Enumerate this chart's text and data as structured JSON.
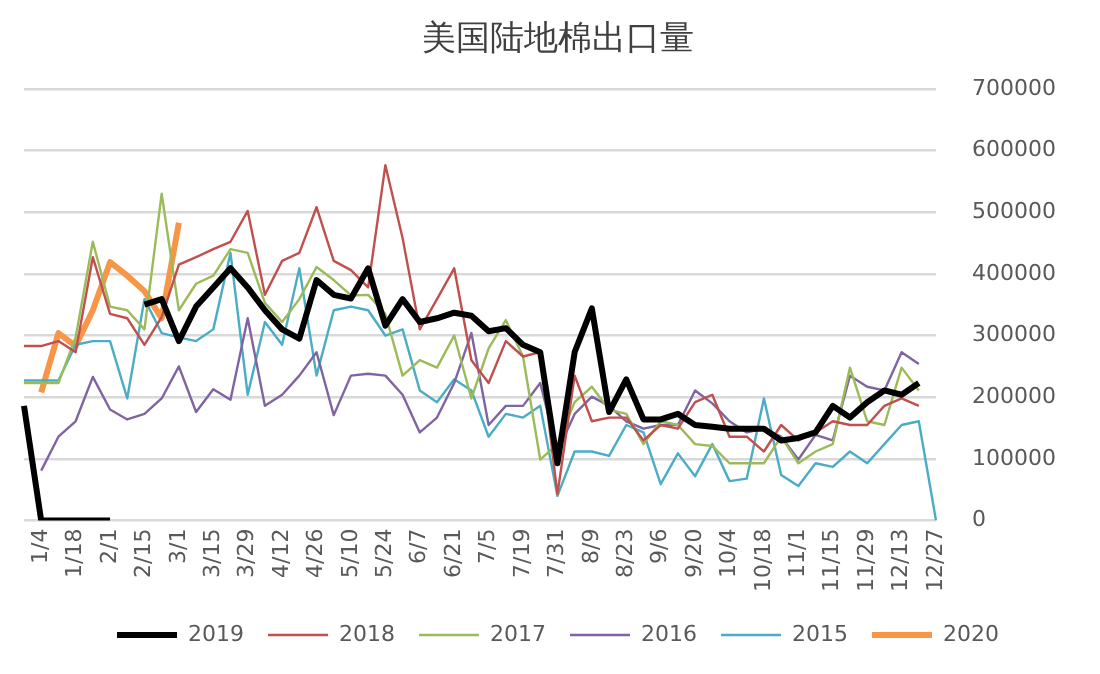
{
  "chart_data": {
    "type": "line",
    "title": "美国陆地棉出口量",
    "categories": [
      null,
      "1/4",
      null,
      "1/18",
      null,
      "2/1",
      null,
      "2/15",
      null,
      "3/1",
      null,
      "3/15",
      null,
      "3/29",
      null,
      "4/12",
      null,
      "4/26",
      null,
      "5/10",
      null,
      "5/24",
      null,
      "6/7",
      null,
      "6/21",
      null,
      "7/5",
      null,
      "7/19",
      null,
      "7/31",
      null,
      "8/9",
      null,
      "8/23",
      null,
      "9/6",
      null,
      "9/20",
      null,
      "10/4",
      null,
      "10/18",
      null,
      "11/1",
      null,
      "11/15",
      null,
      "11/29",
      null,
      "12/13",
      null,
      "12/27"
    ],
    "series": [
      {
        "name": "2019",
        "color": "#000000",
        "values": [
          186000,
          0,
          0,
          0,
          0,
          0,
          null,
          350000,
          359000,
          291000,
          347000,
          378000,
          409000,
          378000,
          341000,
          310000,
          295000,
          390000,
          366000,
          360000,
          409000,
          316000,
          359000,
          322000,
          328000,
          337000,
          332000,
          307000,
          312000,
          285000,
          273000,
          93000,
          273000,
          344000,
          176000,
          229000,
          164000,
          164000,
          173000,
          155000,
          152000,
          149000,
          149000,
          149000,
          130000,
          134000,
          143000,
          186000,
          167000,
          192000,
          211000,
          204000,
          223000,
          null
        ]
      },
      {
        "name": "2018",
        "color": "#c0504d",
        "values": [
          283000,
          283000,
          291000,
          273000,
          427000,
          335000,
          328000,
          285000,
          330000,
          415000,
          427000,
          440000,
          452000,
          502000,
          366000,
          421000,
          434000,
          508000,
          421000,
          406000,
          378000,
          576000,
          458000,
          310000,
          359000,
          409000,
          260000,
          223000,
          291000,
          266000,
          273000,
          43000,
          235000,
          161000,
          167000,
          167000,
          130000,
          155000,
          149000,
          192000,
          204000,
          136000,
          136000,
          112000,
          155000,
          130000,
          143000,
          161000,
          155000,
          155000,
          186000,
          198000,
          186000,
          null
        ]
      },
      {
        "name": "2017",
        "color": "#9bbb59",
        "values": [
          223000,
          223000,
          223000,
          297000,
          452000,
          347000,
          341000,
          310000,
          530000,
          341000,
          384000,
          397000,
          440000,
          434000,
          353000,
          322000,
          359000,
          411000,
          390000,
          365000,
          366000,
          335000,
          235000,
          260000,
          248000,
          300000,
          198000,
          279000,
          325000,
          266000,
          99000,
          124000,
          192000,
          217000,
          180000,
          173000,
          124000,
          161000,
          155000,
          124000,
          121000,
          93000,
          93000,
          93000,
          136000,
          93000,
          112000,
          124000,
          248000,
          161000,
          155000,
          248000,
          211000,
          null
        ]
      },
      {
        "name": "2016",
        "color": "#8064a2",
        "values": [
          null,
          81000,
          136000,
          161000,
          233000,
          180000,
          164000,
          173000,
          198000,
          250000,
          176000,
          213000,
          196000,
          328000,
          186000,
          204000,
          235000,
          273000,
          171000,
          235000,
          238000,
          235000,
          204000,
          143000,
          167000,
          223000,
          304000,
          155000,
          186000,
          186000,
          223000,
          112000,
          173000,
          201000,
          186000,
          161000,
          149000,
          155000,
          155000,
          211000,
          190000,
          161000,
          143000,
          149000,
          136000,
          99000,
          139000,
          130000,
          235000,
          217000,
          211000,
          273000,
          254000,
          null
        ]
      },
      {
        "name": "2015",
        "color": "#4bacc6",
        "values": [
          227000,
          227000,
          227000,
          285000,
          291000,
          291000,
          198000,
          359000,
          304000,
          297000,
          291000,
          310000,
          434000,
          204000,
          322000,
          285000,
          409000,
          235000,
          341000,
          347000,
          341000,
          300000,
          310000,
          211000,
          192000,
          229000,
          211000,
          136000,
          173000,
          167000,
          186000,
          40000,
          112000,
          112000,
          105000,
          155000,
          143000,
          59000,
          109000,
          72000,
          124000,
          64000,
          68000,
          198000,
          74000,
          56000,
          93000,
          87000,
          112000,
          93000,
          124000,
          155000,
          161000,
          0
        ]
      },
      {
        "name": "2020",
        "color": "#f79646",
        "values": [
          null,
          208000,
          304000,
          283000,
          341000,
          419000,
          397000,
          372000,
          328000,
          483000,
          null,
          null,
          null,
          null,
          null,
          null,
          null,
          null,
          null,
          null,
          null,
          null,
          null,
          null,
          null,
          null,
          null,
          null,
          null,
          null,
          null,
          null,
          null,
          null,
          null,
          null,
          null,
          null,
          null,
          null,
          null,
          null,
          null,
          null,
          null,
          null,
          null,
          null,
          null,
          null,
          null,
          null,
          null,
          null
        ]
      }
    ],
    "ylim": [
      0,
      700000
    ],
    "yticks": [
      0,
      100000,
      200000,
      300000,
      400000,
      500000,
      600000,
      700000
    ],
    "grid": "y",
    "legend": "bottom",
    "marker": "none",
    "line_style": "solid"
  }
}
